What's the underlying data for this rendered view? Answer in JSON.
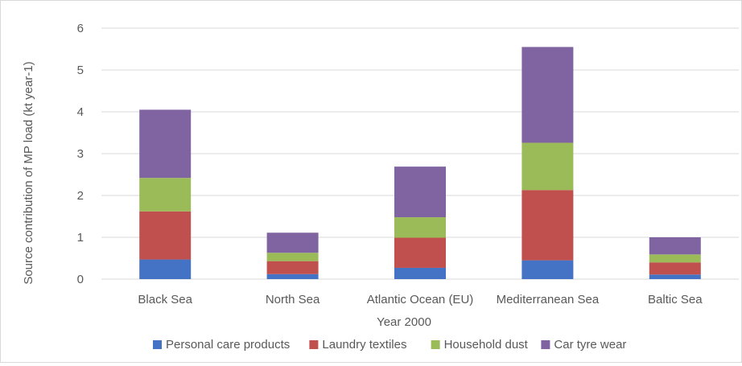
{
  "chart_data": {
    "type": "bar",
    "stacked": true,
    "title": "",
    "xlabel": "Year 2000",
    "ylabel": "Source contribution of MP load (kt year-1)",
    "ylim": [
      0,
      6
    ],
    "yticks": [
      "0",
      "1",
      "2",
      "3",
      "4",
      "5",
      "6"
    ],
    "grid": true,
    "legend_position": "bottom",
    "categories": [
      "Black Sea",
      "North Sea",
      "Atlantic Ocean (EU)",
      "Mediterranean Sea",
      "Baltic Sea"
    ],
    "series": [
      {
        "name": "Personal care products",
        "color": "#4472C4",
        "values": [
          0.47,
          0.12,
          0.27,
          0.45,
          0.11
        ]
      },
      {
        "name": "Laundry textiles",
        "color": "#C0504D",
        "values": [
          1.15,
          0.31,
          0.72,
          1.68,
          0.29
        ]
      },
      {
        "name": "Household dust",
        "color": "#9BBB59",
        "values": [
          0.8,
          0.2,
          0.49,
          1.13,
          0.19
        ]
      },
      {
        "name": "Car tyre wear",
        "color": "#8064A2",
        "values": [
          1.63,
          0.48,
          1.21,
          2.29,
          0.41
        ]
      }
    ]
  }
}
